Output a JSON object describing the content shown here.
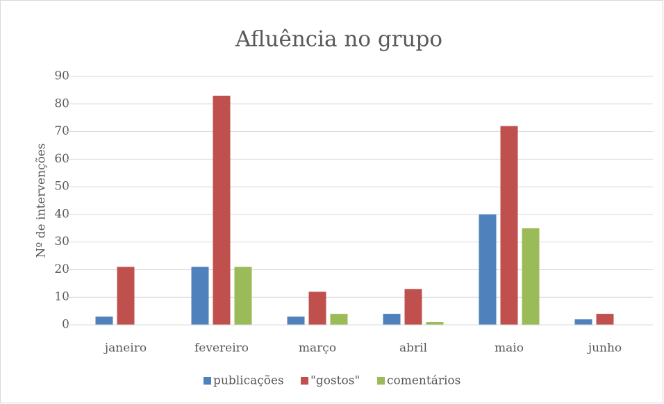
{
  "chart_data": {
    "type": "bar",
    "title": "Afluência no grupo",
    "ylabel": "Nº de intervenções",
    "categories": [
      "janeiro",
      "fevereiro",
      "março",
      "abril",
      "maio",
      "junho"
    ],
    "series": [
      {
        "name": "publicações",
        "color": "#4f81bd",
        "values": [
          3,
          21,
          3,
          4,
          40,
          2
        ]
      },
      {
        "name": "\"gostos\"",
        "color": "#c0504d",
        "values": [
          21,
          83,
          12,
          13,
          72,
          4
        ]
      },
      {
        "name": "comentários",
        "color": "#9bbb59",
        "values": [
          0,
          21,
          4,
          1,
          35,
          0
        ]
      }
    ],
    "ylim": [
      0,
      90
    ],
    "yticks": [
      0,
      10,
      20,
      30,
      40,
      50,
      60,
      70,
      80,
      90
    ],
    "grid": true,
    "legend": "bottom"
  }
}
